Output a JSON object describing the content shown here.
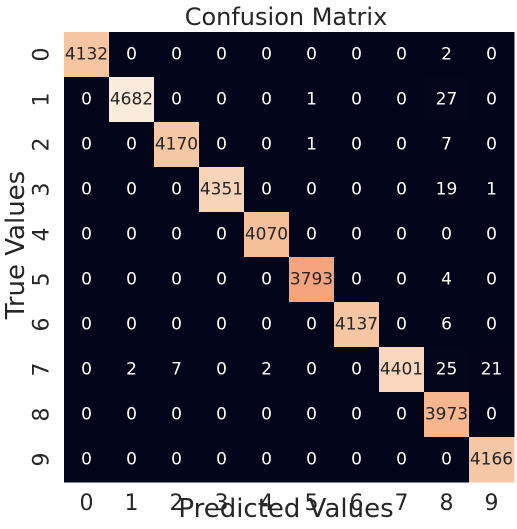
{
  "chart_data": {
    "type": "heatmap",
    "title": "Confusion Matrix",
    "xlabel": "Predicted Values",
    "ylabel": "True Values",
    "x_categories": [
      "0",
      "1",
      "2",
      "3",
      "4",
      "5",
      "6",
      "7",
      "8",
      "9"
    ],
    "y_categories": [
      "0",
      "1",
      "2",
      "3",
      "4",
      "5",
      "6",
      "7",
      "8",
      "9"
    ],
    "values": [
      [
        4132,
        0,
        0,
        0,
        0,
        0,
        0,
        0,
        2,
        0
      ],
      [
        0,
        4682,
        0,
        0,
        0,
        1,
        0,
        0,
        27,
        0
      ],
      [
        0,
        0,
        4170,
        0,
        0,
        1,
        0,
        0,
        7,
        0
      ],
      [
        0,
        0,
        0,
        4351,
        0,
        0,
        0,
        0,
        19,
        1
      ],
      [
        0,
        0,
        0,
        0,
        4070,
        0,
        0,
        0,
        0,
        0
      ],
      [
        0,
        0,
        0,
        0,
        0,
        3793,
        0,
        0,
        4,
        0
      ],
      [
        0,
        0,
        0,
        0,
        0,
        0,
        4137,
        0,
        6,
        0
      ],
      [
        0,
        2,
        7,
        0,
        2,
        0,
        0,
        4401,
        25,
        21
      ],
      [
        0,
        0,
        0,
        0,
        0,
        0,
        0,
        0,
        3973,
        0
      ],
      [
        0,
        0,
        0,
        0,
        0,
        0,
        0,
        0,
        0,
        4166
      ]
    ],
    "colormap": "rocket",
    "colorbar": false,
    "annotated": true
  }
}
